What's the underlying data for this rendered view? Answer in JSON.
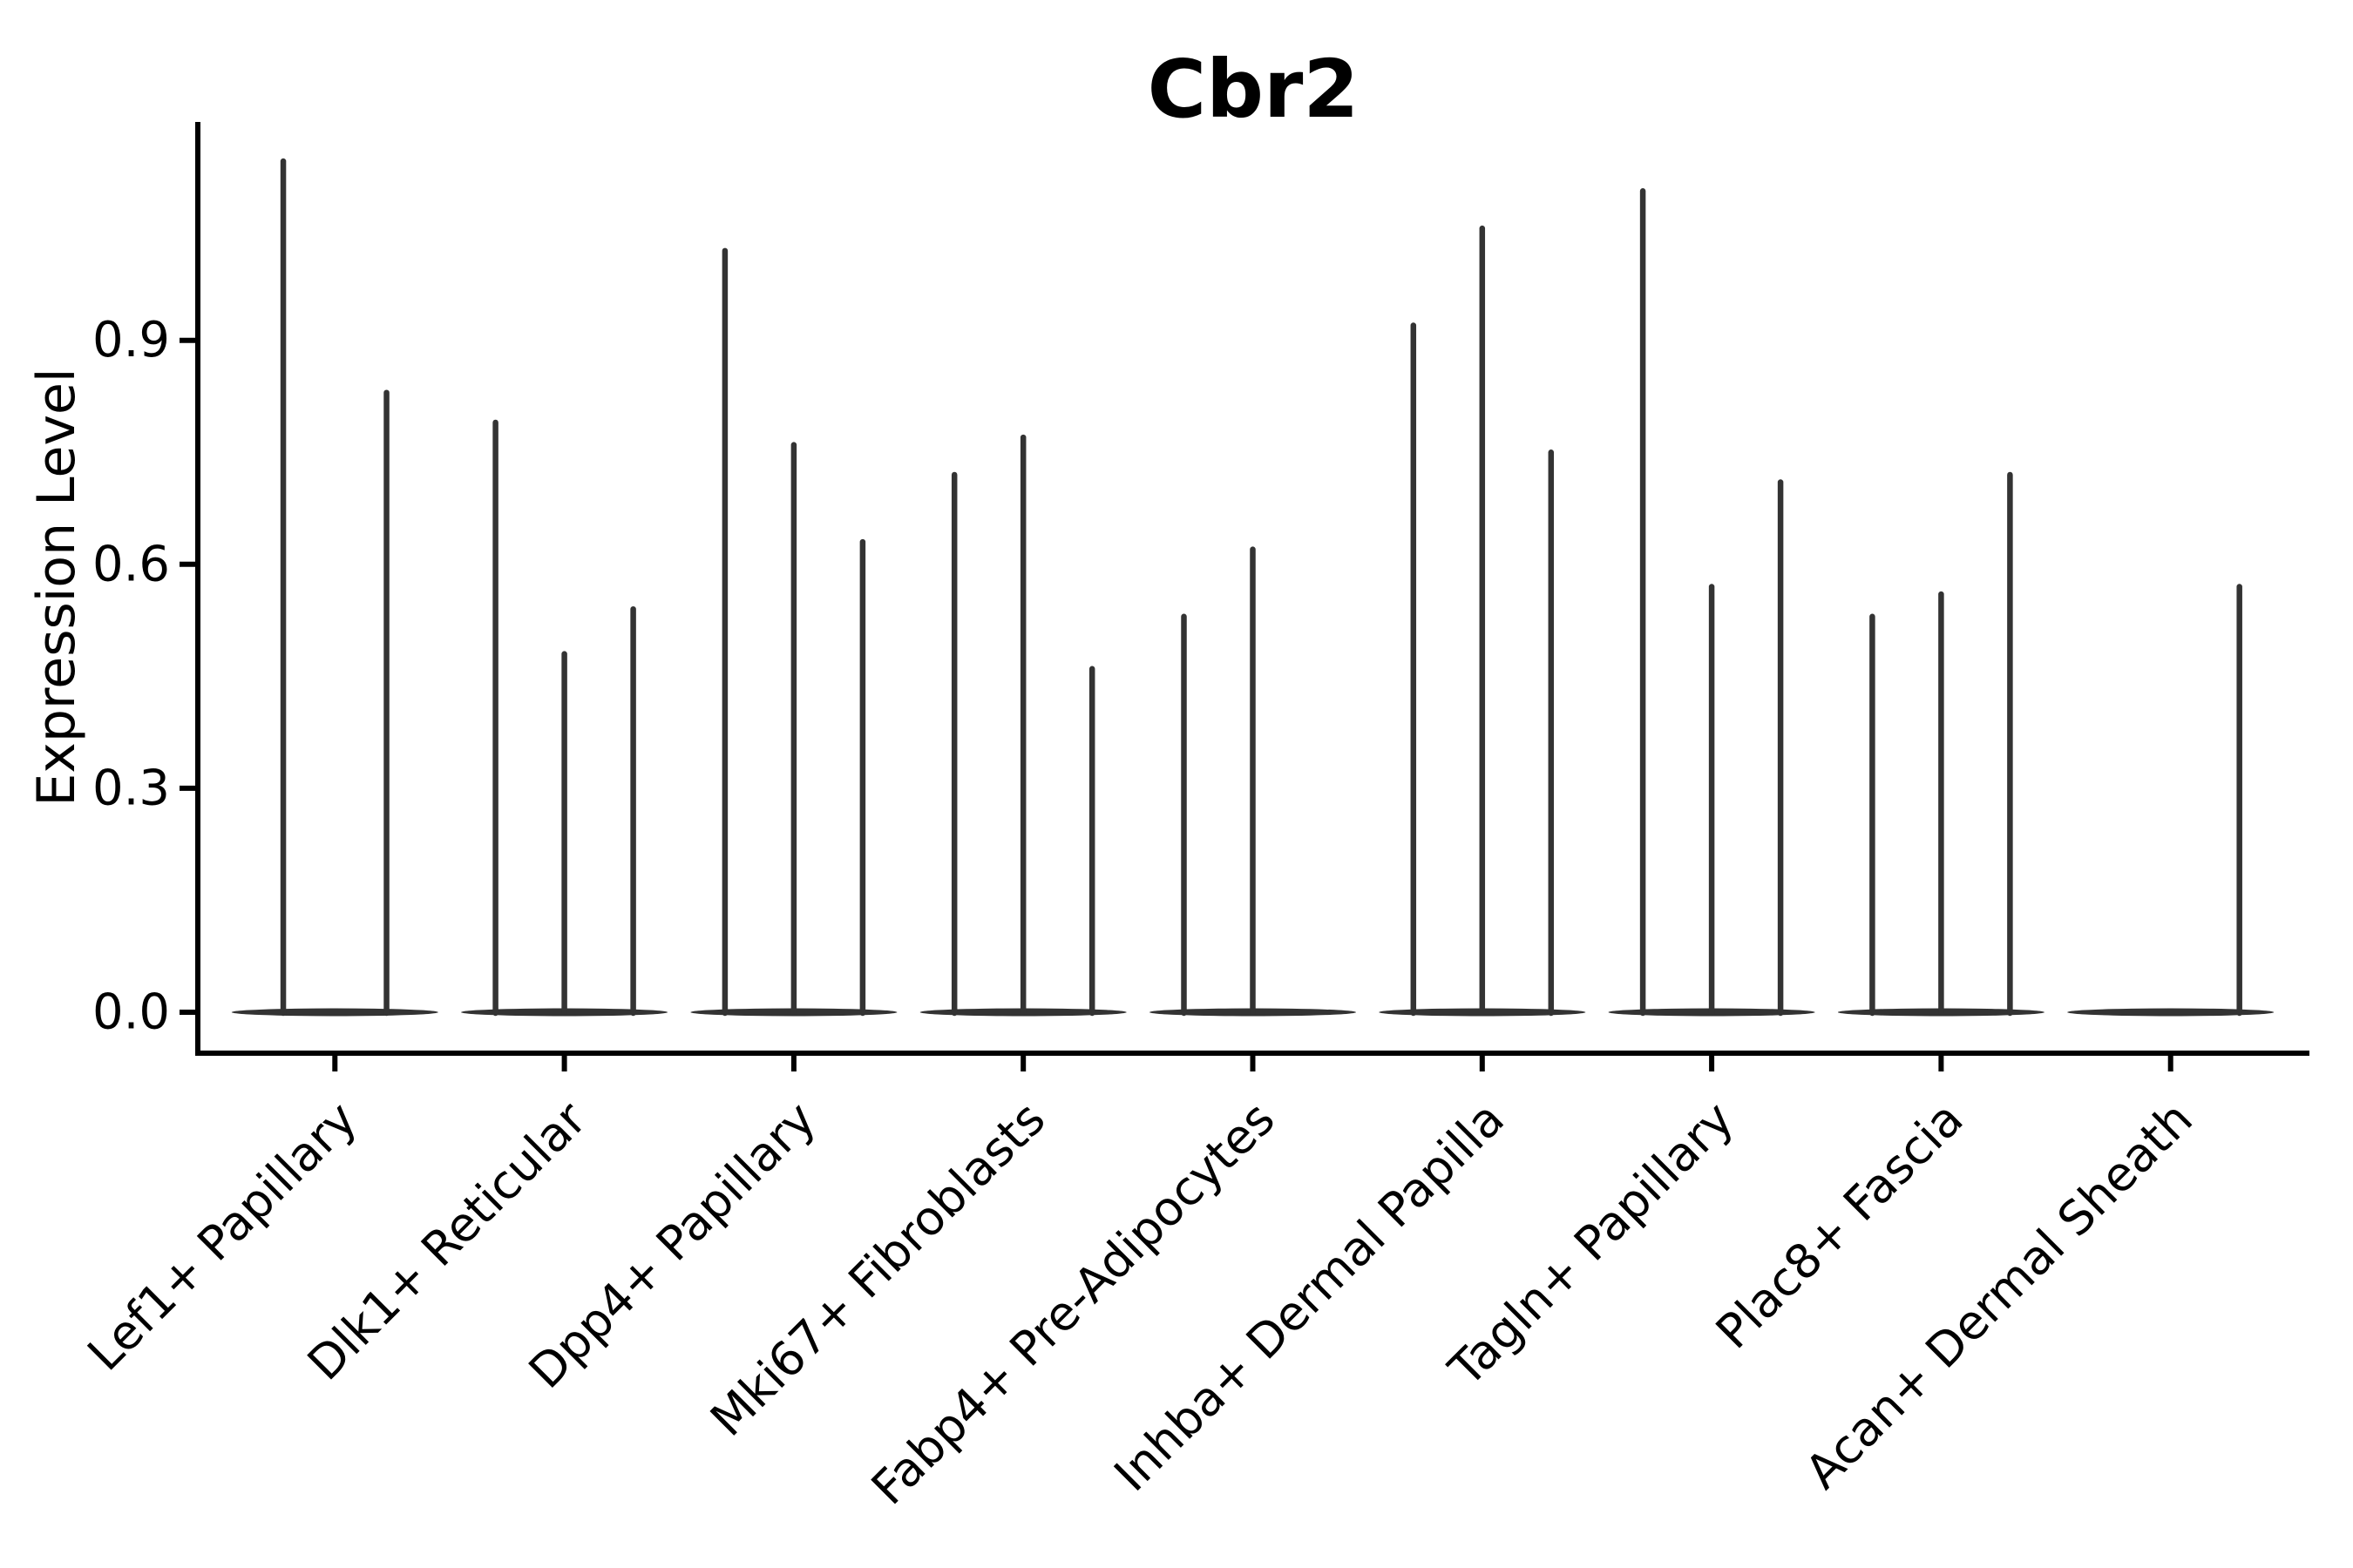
{
  "chart_data": {
    "type": "violin",
    "title": "Cbr2",
    "xlabel": "",
    "ylabel": "Expression Level",
    "yticks": [
      0.0,
      0.3,
      0.6,
      0.9
    ],
    "ytick_labels": [
      "0.0",
      "0.3",
      "0.6",
      "0.9"
    ],
    "ylim": [
      -0.055,
      1.19
    ],
    "grid": false,
    "legend": "none",
    "description": "Single-gene expression violin plot; each category shows 2-3 extremely sparse violins: a flat base at expression 0 with a thin spike up to the maximum expression value.",
    "categories": [
      "Lef1+ Papillary",
      "Dlk1+ Reticular",
      "Dpp4+ Papillary",
      "Mki67+ Fibroblasts",
      "Fabp4+ Pre-Adipocytes",
      "Inhba+ Dermal Papilla",
      "Tagln+ Papillary",
      "Plac8+ Fascia",
      "Acan+ Dermal Sheath"
    ],
    "groups": [
      {
        "label": "Lef1+ Papillary",
        "violin_maxima": [
          1.14,
          0.83
        ]
      },
      {
        "label": "Dlk1+ Reticular",
        "violin_maxima": [
          0.79,
          0.48,
          0.54
        ]
      },
      {
        "label": "Dpp4+ Papillary",
        "violin_maxima": [
          1.02,
          0.76,
          0.63
        ]
      },
      {
        "label": "Mki67+ Fibroblasts",
        "violin_maxima": [
          0.72,
          0.77,
          0.46
        ]
      },
      {
        "label": "Fabp4+ Pre-Adipocytes",
        "violin_maxima": [
          0.53,
          0.62,
          0.0
        ]
      },
      {
        "label": "Inhba+ Dermal Papilla",
        "violin_maxima": [
          0.92,
          1.05,
          0.75
        ]
      },
      {
        "label": "Tagln+ Papillary",
        "violin_maxima": [
          1.1,
          0.57,
          0.71
        ]
      },
      {
        "label": "Plac8+ Fascia",
        "violin_maxima": [
          0.53,
          0.56,
          0.72
        ]
      },
      {
        "label": "Acan+ Dermal Sheath",
        "violin_maxima": [
          0.0,
          0.0,
          0.57
        ]
      }
    ],
    "colors": {
      "violin": "#333333",
      "axis": "#000000",
      "text": "#000000",
      "background": "#ffffff"
    }
  }
}
